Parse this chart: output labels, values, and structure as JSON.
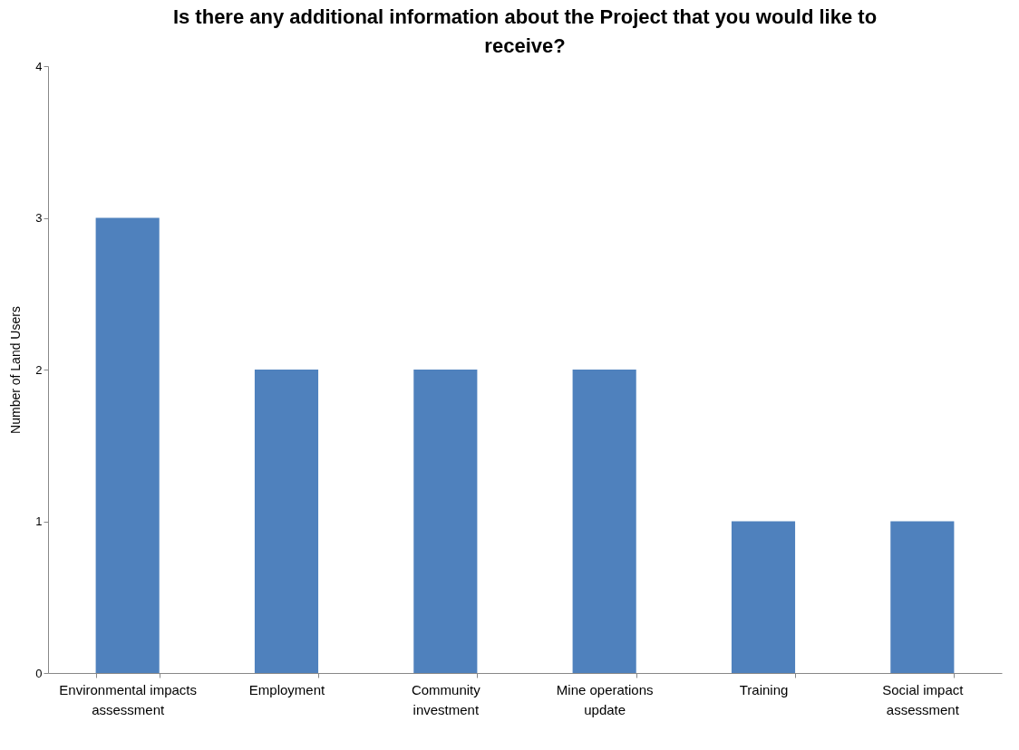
{
  "chart_data": {
    "type": "bar",
    "title": "Is there any additional information about the Project that you would like to receive?",
    "ylabel": "Number of Land Users",
    "categories": [
      "Environmental impacts assessment",
      "Employment",
      "Community investment",
      "Mine operations update",
      "Training",
      "Social impact assessment"
    ],
    "values": [
      3,
      2,
      2,
      2,
      1,
      1
    ],
    "color": "#4f81bd",
    "ylim": [
      0,
      4
    ],
    "yticks": [
      0,
      1,
      2,
      3,
      4
    ],
    "grid": false
  }
}
